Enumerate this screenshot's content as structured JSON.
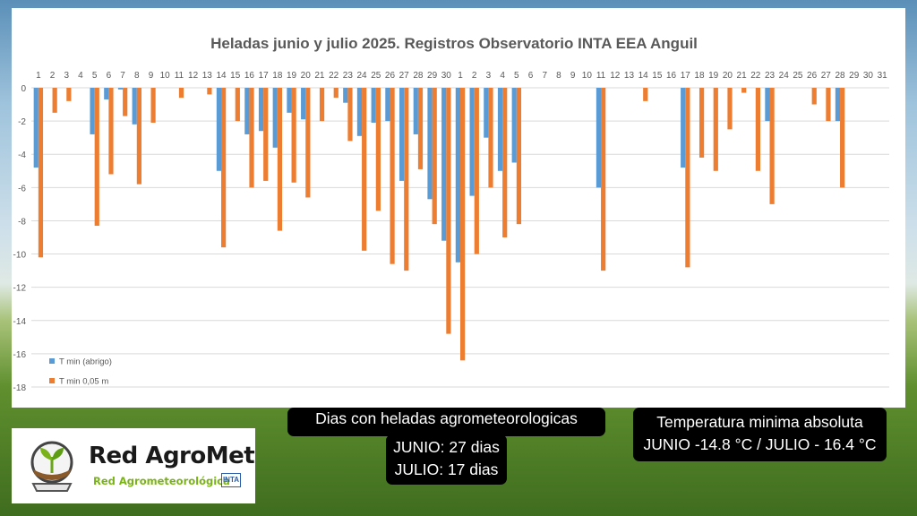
{
  "chart_data": {
    "type": "bar",
    "title": "Heladas junio y julio 2025. Registros Observatorio INTA EEA Anguil",
    "xlabel": "",
    "ylabel": "",
    "ylim": [
      -18,
      0
    ],
    "y_ticks": [
      "0",
      "-2",
      "-4",
      "-6",
      "-8",
      "-10",
      "-12",
      "-14",
      "-16",
      "-18"
    ],
    "categories": [
      "1",
      "2",
      "3",
      "4",
      "5",
      "6",
      "7",
      "8",
      "9",
      "10",
      "11",
      "12",
      "13",
      "14",
      "15",
      "16",
      "17",
      "18",
      "19",
      "20",
      "21",
      "22",
      "23",
      "24",
      "25",
      "26",
      "27",
      "28",
      "29",
      "30",
      "1",
      "2",
      "3",
      "4",
      "5",
      "6",
      "7",
      "8",
      "9",
      "10",
      "11",
      "12",
      "13",
      "14",
      "15",
      "16",
      "17",
      "18",
      "19",
      "20",
      "21",
      "22",
      "23",
      "24",
      "25",
      "26",
      "27",
      "28",
      "29",
      "30",
      "31"
    ],
    "series": [
      {
        "name": "T min (abrigo)",
        "color": "#5b9bd5",
        "values": [
          -4.8,
          0,
          0,
          0,
          -2.8,
          -0.7,
          -0.1,
          -2.2,
          0,
          0,
          0,
          0,
          0,
          -5.0,
          0,
          -2.8,
          -2.6,
          -3.6,
          -1.5,
          -1.9,
          0,
          0,
          -0.9,
          -2.9,
          -2.1,
          -2.0,
          -5.6,
          -2.8,
          -6.7,
          -9.2,
          -10.5,
          -6.5,
          -3.0,
          -5.0,
          -4.5,
          0,
          0,
          0,
          0,
          0,
          -6.0,
          0,
          0,
          0,
          0,
          0,
          -4.8,
          0,
          0,
          0,
          0,
          0,
          -2.0,
          0,
          0,
          0,
          0,
          -2.0,
          0,
          0,
          0
        ]
      },
      {
        "name": "T min 0,05 m",
        "color": "#ed7d31",
        "values": [
          -10.2,
          -1.5,
          -0.8,
          0,
          -8.3,
          -5.2,
          -1.7,
          -5.8,
          -2.1,
          0,
          -0.6,
          0,
          -0.4,
          -9.6,
          -2.0,
          -6.0,
          -5.6,
          -8.6,
          -5.7,
          -6.6,
          -2.0,
          -0.6,
          -3.2,
          -9.8,
          -7.4,
          -10.6,
          -11.0,
          -4.9,
          -8.2,
          -14.8,
          -16.4,
          -10.0,
          -6.0,
          -9.0,
          -8.2,
          0,
          0,
          0,
          0,
          0,
          -11.0,
          0,
          0,
          -0.8,
          0,
          0,
          -10.8,
          -4.2,
          -5.0,
          -2.5,
          -0.3,
          -5.0,
          -7.0,
          0,
          0,
          -1.0,
          -2.0,
          -6.0,
          0,
          0,
          0
        ]
      }
    ],
    "legend": "bottom-left",
    "grid": true
  },
  "info": {
    "days_title": "Dias con heladas agrometeorologicas",
    "days_june": "JUNIO: 27 dias",
    "days_july": "JULIO: 17 dias",
    "temp_title": "Temperatura minima absoluta",
    "temp_values": "JUNIO -14.8 °C / JULIO - 16.4 °C"
  },
  "logo": {
    "title": "Red AgroMet",
    "subtitle": "Red Agrometeorológica",
    "badge": "INTA"
  }
}
